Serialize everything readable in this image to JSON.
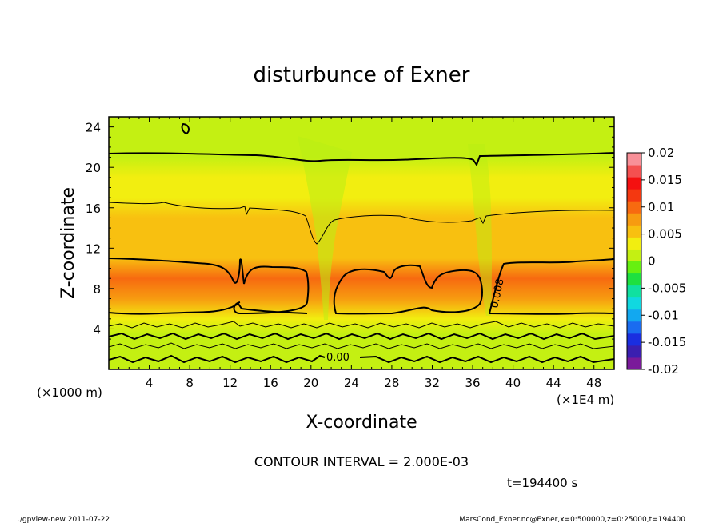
{
  "chart_data": {
    "type": "heatmap",
    "title": "disturbunce of Exner",
    "xlabel": "X-coordinate",
    "ylabel": "Z-coordinate",
    "x_unit_left": "(×1000 m)",
    "x_unit_right": "(×1E4 m)",
    "xlim": [
      0,
      50
    ],
    "ylim": [
      0,
      25
    ],
    "x_ticks": [
      "4",
      "8",
      "12",
      "16",
      "20",
      "24",
      "28",
      "32",
      "36",
      "40",
      "44",
      "48"
    ],
    "y_ticks": [
      "4",
      "8",
      "12",
      "16",
      "20",
      "24"
    ],
    "colorbar": {
      "labels": [
        "0.02",
        "0.015",
        "0.01",
        "0.005",
        "0",
        "-0.005",
        "-0.01",
        "-0.015",
        "-0.02"
      ],
      "range": [
        -0.02,
        0.02
      ],
      "colors": [
        "#7a1a9a",
        "#3a1fb0",
        "#1a2ee0",
        "#1a6cf0",
        "#12a8f0",
        "#10d8e0",
        "#10e0a0",
        "#1ee040",
        "#66f010",
        "#c4f012",
        "#f2ee10",
        "#f8c010",
        "#f79b10",
        "#f76a10",
        "#f43810",
        "#f41010",
        "#f45050",
        "#f89098"
      ]
    },
    "contour_labels": [
      "0.008",
      "0.00"
    ],
    "contour_interval_text": "CONTOUR INTERVAL = 2.000E-03",
    "bands": [
      {
        "z": 0.5,
        "value": 0.0
      },
      {
        "z": 2.0,
        "value": 0.001
      },
      {
        "z": 3.5,
        "value": 0.002
      },
      {
        "z": 5.0,
        "value": 0.004
      },
      {
        "z": 7.0,
        "value": 0.0085
      },
      {
        "z": 9.0,
        "value": 0.009
      },
      {
        "z": 11.0,
        "value": 0.0065
      },
      {
        "z": 13.0,
        "value": 0.0055
      },
      {
        "z": 15.0,
        "value": 0.0045
      },
      {
        "z": 17.0,
        "value": 0.0035
      },
      {
        "z": 19.0,
        "value": 0.0025
      },
      {
        "z": 21.0,
        "value": 0.0018
      },
      {
        "z": 23.0,
        "value": 0.0012
      },
      {
        "z": 25.0,
        "value": 0.0008
      }
    ]
  },
  "annotations": {
    "time": "t=194400 s",
    "footer_left": "./gpview-new  2011-07-22",
    "footer_right": "MarsCond_Exner.nc@Exner,x=0:500000,z=0:25000,t=194400"
  }
}
